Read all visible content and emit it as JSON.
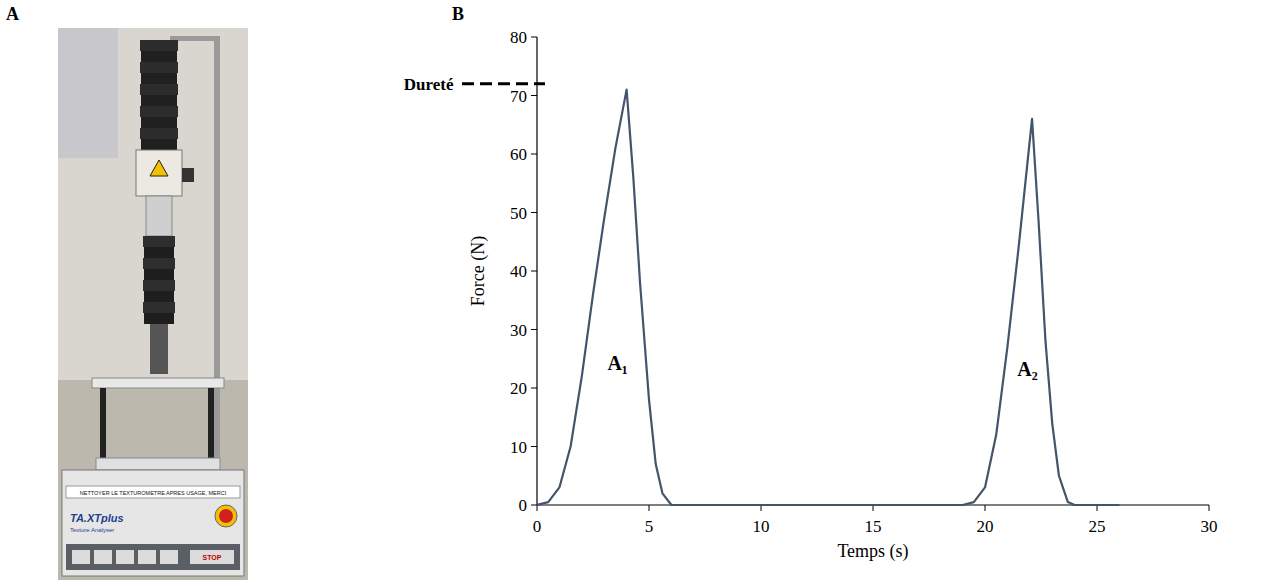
{
  "panels": {
    "A": "A",
    "B": "B"
  },
  "photo": {
    "texts": [
      "NETTOYER LE TEXTUROMETRE APRES USAGE, MERCI",
      "TA.XTplus",
      "Texture Analyser",
      "STOP"
    ]
  },
  "chart_data": {
    "type": "line",
    "xlabel": "Temps (s)",
    "ylabel": "Force (N)",
    "x": [
      0,
      0.5,
      1,
      1.5,
      2,
      2.5,
      3,
      3.5,
      4,
      4.3,
      4.6,
      5,
      5.3,
      5.6,
      6,
      10,
      15,
      19,
      19.5,
      20,
      20.5,
      21,
      21.5,
      22.1,
      22.4,
      22.7,
      23,
      23.3,
      23.7,
      24,
      26
    ],
    "values": [
      0,
      0.5,
      3,
      10,
      22,
      36,
      49,
      61,
      71,
      56,
      38,
      18,
      7,
      2,
      0,
      0,
      0,
      0,
      0.5,
      3,
      12,
      27,
      44,
      66,
      48,
      28,
      14,
      5,
      0.5,
      0,
      0
    ],
    "color": "#44546a",
    "grid": false,
    "xlim": [
      0,
      30
    ],
    "xticks": [
      0,
      5,
      10,
      15,
      20,
      25,
      30
    ],
    "ylim": [
      0,
      80
    ],
    "yticks": [
      0,
      10,
      20,
      30,
      40,
      50,
      60,
      70,
      80
    ],
    "annotations": [
      {
        "text": "Dureté",
        "y": 72
      },
      {
        "text": "A₁",
        "x": 3.6,
        "y": 23
      },
      {
        "text": "A₂",
        "x": 21.9,
        "y": 22
      }
    ]
  }
}
